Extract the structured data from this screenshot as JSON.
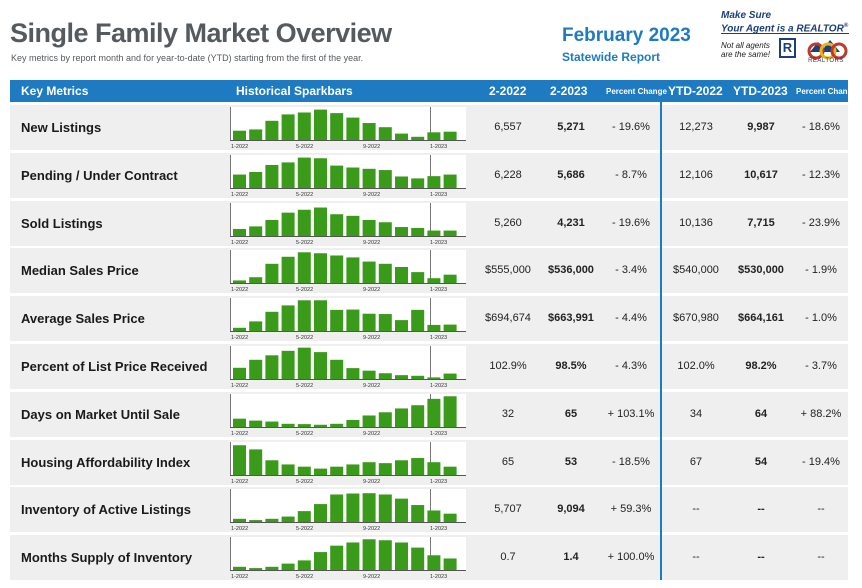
{
  "header": {
    "title": "Single Family Market Overview",
    "subtitle": "Key metrics by report month and for year-to-date (YTD) starting from the first of the year.",
    "month": "February 2023",
    "report": "Statewide Report",
    "tagline_line1": "Make Sure",
    "tagline_line2": "Your Agent is a REALTOR",
    "tagline_mark": "®",
    "disclaimer_line1": "Not all agents",
    "disclaimer_line2": "are the same!",
    "logo_r": "R",
    "logo_org": "REALTORS"
  },
  "columns": {
    "metric": "Key Metrics",
    "sparkbars": "Historical Sparkbars",
    "prev": "2-2022",
    "cur": "2-2023",
    "pct": "Percent Change",
    "ytd_prev": "YTD-2022",
    "ytd_cur": "YTD-2023",
    "ytd_pct": "Percent Change"
  },
  "spark_tick_labels": [
    "1-2022",
    "5-2022",
    "9-2022",
    "1-2023"
  ],
  "colors": {
    "accent": "#1f7bc1",
    "bar": "#3a9a1a",
    "row_bg": "#efefef"
  },
  "rows": [
    {
      "name": "New Listings",
      "prev": "6,557",
      "cur": "5,271",
      "pct": "- 19.6%",
      "ytd_prev": "12,273",
      "ytd_cur": "9,987",
      "ytd_pct": "- 18.6%",
      "bars": [
        0.29,
        0.33,
        0.6,
        0.8,
        0.86,
        0.95,
        0.84,
        0.7,
        0.53,
        0.4,
        0.2,
        0.1,
        0.24,
        0.26
      ]
    },
    {
      "name": "Pending / Under Contract",
      "prev": "6,228",
      "cur": "5,686",
      "pct": "- 8.7%",
      "ytd_prev": "12,106",
      "ytd_cur": "10,617",
      "ytd_pct": "- 12.3%",
      "bars": [
        0.42,
        0.5,
        0.72,
        0.8,
        0.95,
        0.93,
        0.7,
        0.64,
        0.6,
        0.56,
        0.36,
        0.3,
        0.37,
        0.42
      ]
    },
    {
      "name": "Sold Listings",
      "prev": "5,260",
      "cur": "4,231",
      "pct": "- 19.6%",
      "ytd_prev": "10,136",
      "ytd_cur": "7,715",
      "ytd_pct": "- 23.9%",
      "bars": [
        0.22,
        0.3,
        0.5,
        0.73,
        0.82,
        0.89,
        0.68,
        0.63,
        0.5,
        0.43,
        0.28,
        0.25,
        0.17,
        0.17
      ]
    },
    {
      "name": "Median Sales Price",
      "prev": "$555,000",
      "cur": "$536,000",
      "pct": "- 3.4%",
      "ytd_prev": "$540,000",
      "ytd_cur": "$530,000",
      "ytd_pct": "- 1.9%",
      "bars": [
        0.08,
        0.18,
        0.6,
        0.82,
        0.96,
        0.93,
        0.86,
        0.8,
        0.67,
        0.6,
        0.5,
        0.34,
        0.15,
        0.26
      ]
    },
    {
      "name": "Average Sales Price",
      "prev": "$694,674",
      "cur": "$663,991",
      "pct": "- 4.4%",
      "ytd_prev": "$670,980",
      "ytd_cur": "$664,161",
      "ytd_pct": "- 1.0%",
      "bars": [
        0.1,
        0.3,
        0.6,
        0.8,
        0.96,
        0.96,
        0.66,
        0.67,
        0.54,
        0.53,
        0.34,
        0.66,
        0.19,
        0.2
      ]
    },
    {
      "name": "Percent of List Price Received",
      "prev": "102.9%",
      "cur": "98.5%",
      "pct": "- 4.3%",
      "ytd_prev": "102.0%",
      "ytd_cur": "98.2%",
      "ytd_pct": "- 3.7%",
      "bars": [
        0.35,
        0.6,
        0.74,
        0.88,
        0.98,
        0.84,
        0.6,
        0.34,
        0.26,
        0.18,
        0.12,
        0.1,
        0.05,
        0.17
      ]
    },
    {
      "name": "Days on Market Until Sale",
      "prev": "32",
      "cur": "65",
      "pct": "+ 103.1%",
      "ytd_prev": "34",
      "ytd_cur": "64",
      "ytd_pct": "+ 88.2%",
      "bars": [
        0.26,
        0.2,
        0.17,
        0.1,
        0.09,
        0.07,
        0.1,
        0.22,
        0.36,
        0.46,
        0.58,
        0.68,
        0.88,
        0.96
      ]
    },
    {
      "name": "Housing Affordability Index",
      "prev": "65",
      "cur": "53",
      "pct": "- 18.5%",
      "ytd_prev": "67",
      "ytd_cur": "54",
      "ytd_pct": "- 19.4%",
      "bars": [
        0.93,
        0.8,
        0.46,
        0.33,
        0.26,
        0.2,
        0.26,
        0.33,
        0.4,
        0.37,
        0.46,
        0.53,
        0.4,
        0.26
      ]
    },
    {
      "name": "Inventory of Active Listings",
      "prev": "5,707",
      "cur": "9,094",
      "pct": "+ 59.3%",
      "ytd_prev": "--",
      "ytd_cur": "--",
      "ytd_pct": "--",
      "bars": [
        0.1,
        0.06,
        0.1,
        0.17,
        0.34,
        0.56,
        0.86,
        0.89,
        0.9,
        0.86,
        0.73,
        0.53,
        0.36,
        0.26
      ]
    },
    {
      "name": "Months Supply of Inventory",
      "prev": "0.7",
      "cur": "1.4",
      "pct": "+ 100.0%",
      "ytd_prev": "--",
      "ytd_cur": "--",
      "ytd_pct": "--",
      "bars": [
        0.1,
        0.06,
        0.1,
        0.2,
        0.3,
        0.56,
        0.76,
        0.86,
        0.96,
        0.93,
        0.86,
        0.7,
        0.46,
        0.36
      ]
    }
  ]
}
